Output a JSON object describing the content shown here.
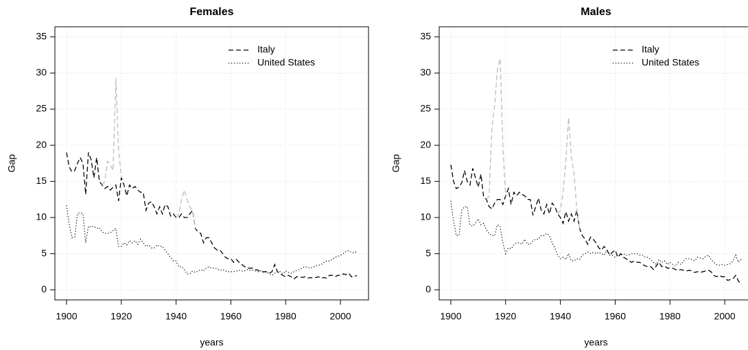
{
  "chart_data": [
    {
      "type": "line",
      "title": "Females",
      "xlabel": "years",
      "ylabel": "Gap",
      "xlim": [
        1895.76,
        2010.24
      ],
      "ylim": [
        -1.4,
        36.4
      ],
      "xticks": [
        1900,
        1920,
        1940,
        1960,
        1980,
        2000
      ],
      "yticks": [
        0,
        5,
        10,
        15,
        20,
        25,
        30,
        35
      ],
      "grid": true,
      "legend": "top-right",
      "x": [
        1900,
        1901,
        1902,
        1903,
        1904,
        1905,
        1906,
        1907,
        1908,
        1909,
        1910,
        1911,
        1912,
        1913,
        1914,
        1915,
        1916,
        1917,
        1918,
        1919,
        1920,
        1921,
        1922,
        1923,
        1924,
        1925,
        1926,
        1927,
        1928,
        1929,
        1930,
        1931,
        1932,
        1933,
        1934,
        1935,
        1936,
        1937,
        1938,
        1939,
        1940,
        1941,
        1942,
        1943,
        1944,
        1945,
        1946,
        1947,
        1948,
        1949,
        1950,
        1951,
        1952,
        1953,
        1954,
        1955,
        1956,
        1957,
        1958,
        1959,
        1960,
        1961,
        1962,
        1963,
        1964,
        1965,
        1966,
        1967,
        1968,
        1969,
        1970,
        1971,
        1972,
        1973,
        1974,
        1975,
        1976,
        1977,
        1978,
        1979,
        1980,
        1981,
        1982,
        1983,
        1984,
        1985,
        1986,
        1987,
        1988,
        1989,
        1990,
        1991,
        1992,
        1993,
        1994,
        1995,
        1996,
        1997,
        1998,
        1999,
        2000,
        2001,
        2002,
        2003,
        2004,
        2005,
        2006
      ],
      "series": [
        {
          "name": "Italy",
          "color": "#000000",
          "dash": "dashed",
          "values": [
            19,
            17,
            16.3,
            16.5,
            17.5,
            18.3,
            17.5,
            13.2,
            19,
            18,
            15.5,
            18.3,
            15,
            14.5,
            14,
            14.3,
            13.8,
            14.2,
            14.5,
            12.3,
            15.5,
            14.5,
            13,
            14.5,
            14,
            14.3,
            13.8,
            13.5,
            13.5,
            11,
            12,
            12.2,
            11.5,
            10.5,
            11.5,
            10.5,
            11.8,
            11.5,
            10.2,
            10.5,
            10,
            10,
            10.5,
            10,
            10,
            10.5,
            11,
            8.5,
            8,
            7.8,
            6.5,
            7.2,
            7.2,
            6.5,
            5.8,
            5.5,
            5.5,
            5,
            4.5,
            4.3,
            4.3,
            3.8,
            4.2,
            3.8,
            3.5,
            3.2,
            3,
            3,
            3,
            2.8,
            2.7,
            2.5,
            2.5,
            2.5,
            2.3,
            2.5,
            3.5,
            2.5,
            2.2,
            2,
            1.8,
            2,
            1.8,
            1.5,
            1.8,
            1.8,
            1.7,
            1.8,
            1.6,
            1.7,
            1.6,
            1.7,
            1.8,
            1.6,
            1.7,
            1.6,
            2,
            2,
            1.8,
            2,
            2,
            2.2,
            2.1,
            2.3,
            1.8,
            1.8,
            2
          ]
        },
        {
          "name": "United States",
          "color": "#000000",
          "dash": "dotted",
          "values": [
            11.7,
            9,
            7.2,
            7.3,
            10.5,
            10.7,
            10.5,
            6.5,
            8.8,
            8.7,
            8.8,
            8.5,
            8.6,
            8,
            7.8,
            7.8,
            7.9,
            8.2,
            8.5,
            6,
            6,
            6.5,
            6.2,
            6.8,
            6.5,
            6.8,
            6.3,
            7,
            6.5,
            6,
            6.2,
            5.8,
            5.8,
            6.2,
            6,
            6,
            5.5,
            5,
            4.5,
            4,
            4,
            3.2,
            3.2,
            2.8,
            2.2,
            2.2,
            2.6,
            2.4,
            2.6,
            2.8,
            2.6,
            3,
            3.2,
            3,
            3,
            2.9,
            2.7,
            2.8,
            2.6,
            2.5,
            2.5,
            2.5,
            2.6,
            2.7,
            2.6,
            2.6,
            2.8,
            2.7,
            2.7,
            2.6,
            2.5,
            2.6,
            2.4,
            2.5,
            2.2,
            2,
            2.3,
            2.5,
            2.5,
            2.2,
            2.6,
            2.4,
            2.3,
            2.5,
            2.7,
            2.8,
            3,
            3.2,
            3.1,
            3,
            3.1,
            3.3,
            3.4,
            3.5,
            3.8,
            4,
            4,
            4.2,
            4.5,
            4.6,
            4.8,
            5,
            5.3,
            5.4,
            5.2,
            5.1,
            5.3
          ]
        },
        {
          "color": "#bbbbbb",
          "dash": "dashed",
          "x": [
            1913,
            1914,
            1915,
            1916,
            1917,
            1918,
            1919,
            1920
          ],
          "values": [
            14.5,
            15,
            17.8,
            17.3,
            16.5,
            29.3,
            19.5,
            15.5
          ]
        },
        {
          "color": "#bbbbbb",
          "dash": "dashed",
          "x": [
            1940,
            1941,
            1942,
            1943,
            1944,
            1945,
            1946,
            1947
          ],
          "values": [
            10,
            10.5,
            12.5,
            13.8,
            12.5,
            11.5,
            11,
            8.5
          ]
        }
      ]
    },
    {
      "type": "line",
      "title": "Males",
      "xlabel": "years",
      "ylabel": "Gap",
      "xlim": [
        1895.76,
        2010.24
      ],
      "ylim": [
        -1.4,
        36.4
      ],
      "xticks": [
        1900,
        1920,
        1940,
        1960,
        1980,
        2000
      ],
      "yticks": [
        0,
        5,
        10,
        15,
        20,
        25,
        30,
        35
      ],
      "grid": true,
      "legend": "top-right",
      "x": [
        1900,
        1901,
        1902,
        1903,
        1904,
        1905,
        1906,
        1907,
        1908,
        1909,
        1910,
        1911,
        1912,
        1913,
        1914,
        1915,
        1916,
        1917,
        1918,
        1919,
        1920,
        1921,
        1922,
        1923,
        1924,
        1925,
        1926,
        1927,
        1928,
        1929,
        1930,
        1931,
        1932,
        1933,
        1934,
        1935,
        1936,
        1937,
        1938,
        1939,
        1940,
        1941,
        1942,
        1943,
        1944,
        1945,
        1946,
        1947,
        1948,
        1949,
        1950,
        1951,
        1952,
        1953,
        1954,
        1955,
        1956,
        1957,
        1958,
        1959,
        1960,
        1961,
        1962,
        1963,
        1964,
        1965,
        1966,
        1967,
        1968,
        1969,
        1970,
        1971,
        1972,
        1973,
        1974,
        1975,
        1976,
        1977,
        1978,
        1979,
        1980,
        1981,
        1982,
        1983,
        1984,
        1985,
        1986,
        1987,
        1988,
        1989,
        1990,
        1991,
        1992,
        1993,
        1994,
        1995,
        1996,
        1997,
        1998,
        1999,
        2000,
        2001,
        2002,
        2003,
        2004,
        2005,
        2006
      ],
      "series": [
        {
          "name": "Italy",
          "color": "#000000",
          "dash": "dashed",
          "values": [
            17.3,
            15,
            14,
            14.2,
            14.8,
            16.5,
            15,
            14.5,
            16.8,
            15.5,
            14.2,
            16,
            12.8,
            12.5,
            11.5,
            11.2,
            12,
            12.5,
            12.5,
            11.8,
            13,
            14,
            11.8,
            13.5,
            13,
            13.5,
            13.2,
            13,
            12.5,
            12.5,
            10.3,
            11.5,
            12.7,
            11,
            10.5,
            11.8,
            10.5,
            12,
            11.5,
            10.5,
            10,
            9.2,
            10.8,
            9.5,
            10.5,
            9.5,
            11,
            8.5,
            7.5,
            7,
            6.3,
            7.3,
            7,
            6.5,
            5.8,
            5.5,
            6,
            5.5,
            4.8,
            5.2,
            5.5,
            4.5,
            5,
            4.5,
            4.3,
            4,
            3.8,
            4,
            3.8,
            3.8,
            3.5,
            3.3,
            3.2,
            3.2,
            2.8,
            3.3,
            3.8,
            3.2,
            3.3,
            3,
            3,
            3,
            2.8,
            2.7,
            2.8,
            2.7,
            2.6,
            2.7,
            2.6,
            2.4,
            2.5,
            2.4,
            2.5,
            2.6,
            2.7,
            2.5,
            2,
            1.8,
            2,
            1.8,
            1.8,
            1.3,
            1.4,
            1.5,
            2,
            1.2,
            0.8
          ]
        },
        {
          "name": "United States",
          "color": "#000000",
          "dash": "dotted",
          "values": [
            12.3,
            9.5,
            7.5,
            7.5,
            11,
            11.5,
            11.5,
            9,
            8.8,
            9.2,
            9.8,
            9,
            9.2,
            8.3,
            7.8,
            7.5,
            7.5,
            9,
            8.8,
            6.5,
            5,
            5.8,
            5.7,
            6.2,
            6.5,
            6.5,
            6.3,
            7,
            6.3,
            6.3,
            6.8,
            7,
            7,
            7.5,
            7.5,
            7.8,
            7.5,
            6.5,
            5.8,
            4.8,
            4.3,
            4.5,
            4.2,
            5,
            4,
            4,
            4.3,
            4.2,
            4.8,
            5,
            5.2,
            5,
            5.2,
            5,
            5.2,
            5,
            4.8,
            5.5,
            4.8,
            4.8,
            4.5,
            4.8,
            4.8,
            5,
            4.8,
            4.8,
            5,
            5,
            5,
            4.8,
            4.8,
            4.5,
            4.5,
            4.2,
            3.8,
            3.5,
            4.2,
            3.8,
            4,
            3.5,
            3.8,
            3.5,
            3.3,
            3.8,
            3.5,
            4,
            4.3,
            4.3,
            4.2,
            4,
            4.5,
            4.4,
            4.3,
            4.6,
            4.8,
            4.2,
            3.8,
            3.5,
            3.4,
            3.5,
            3.4,
            3.5,
            3.6,
            4,
            4.8,
            3.8,
            4.2
          ]
        },
        {
          "color": "#bbbbbb",
          "dash": "dashed",
          "x": [
            1913,
            1914,
            1915,
            1916,
            1917,
            1918,
            1919,
            1920
          ],
          "values": [
            12.5,
            13,
            22.5,
            25.5,
            30.5,
            32,
            20,
            13
          ]
        },
        {
          "color": "#bbbbbb",
          "dash": "dashed",
          "x": [
            1939,
            1940,
            1941,
            1942,
            1943,
            1944,
            1945,
            1946,
            1947
          ],
          "values": [
            10.5,
            11,
            13.5,
            18,
            23.8,
            18.5,
            16,
            11,
            8.5
          ]
        }
      ]
    }
  ]
}
